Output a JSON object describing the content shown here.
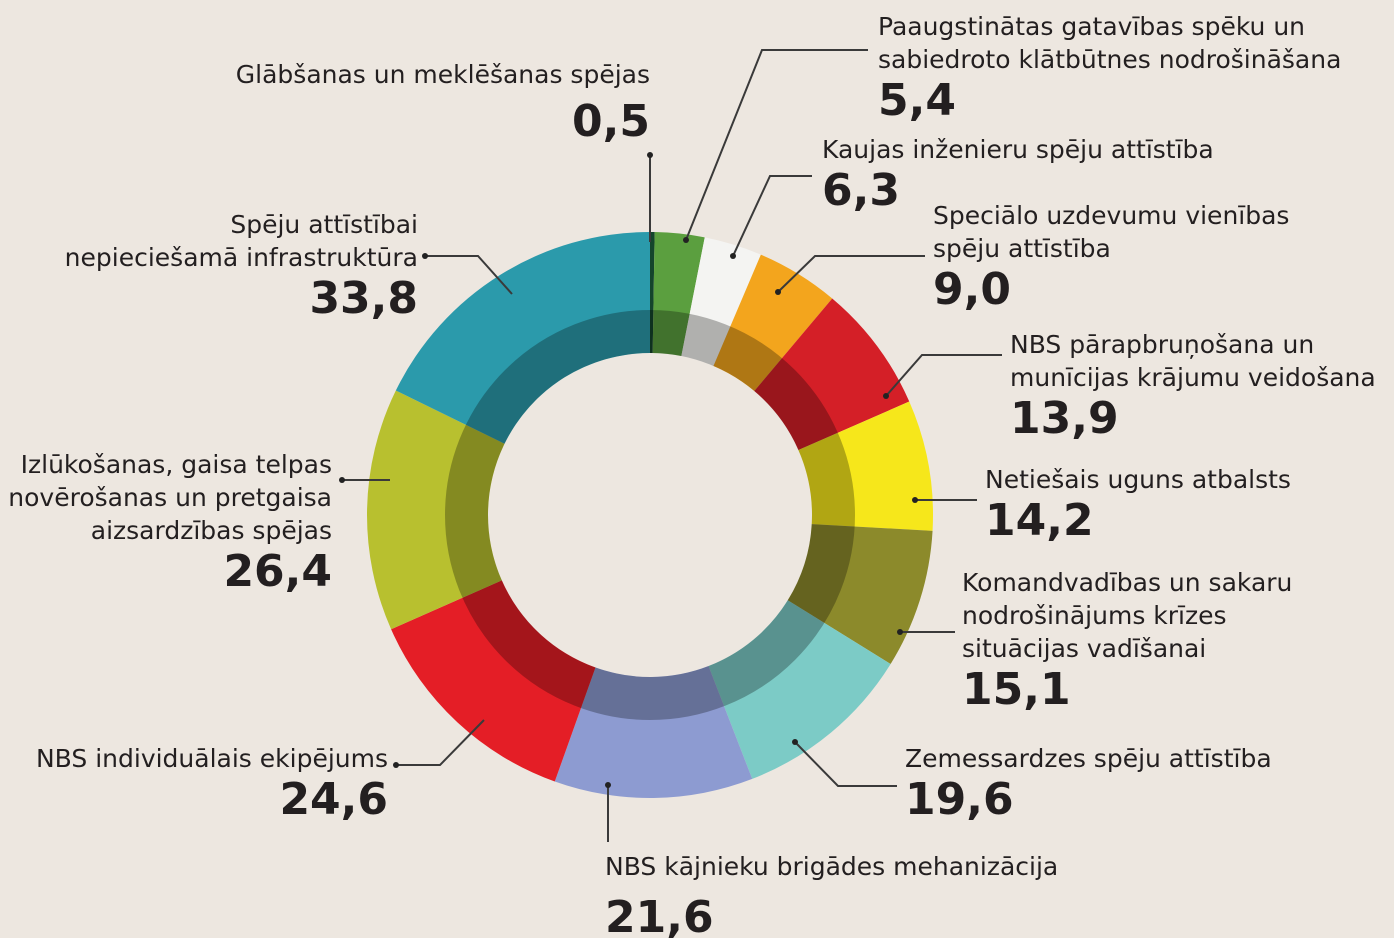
{
  "chart_data": {
    "type": "donut",
    "categories": [
      "Glābšanas un meklēšanas spējas",
      "Paaugstinātas gatavības spēku un\nsabiedroto klātbūtnes nodrošināšana",
      "Kaujas inženieru spēju attīstība",
      "Speciālo uzdevumu vienības\nspēju attīstība",
      "NBS pārapbruņošana un\nmunīcijas krājumu veidošana",
      "Netiešais uguns atbalsts",
      "Komandvadības un sakaru\nnodrošinājums krīzes\nsituācijas vadīšanai",
      "Zemessardzes spēju attīstība",
      "NBS kājnieku brigādes mehanizācija",
      "NBS individuālais ekipējums",
      "Izlūkošanas, gaisa telpas\nnovērošanas un pretgaisa\naizsardzības spējas",
      "Spēju attīstībai\nnepieciešamā infrastruktūra"
    ],
    "values": [
      0.5,
      5.4,
      6.3,
      9.0,
      13.9,
      14.2,
      15.1,
      19.6,
      21.6,
      24.6,
      26.4,
      33.8
    ],
    "value_labels": [
      "0,5",
      "5,4",
      "6,3",
      "9,0",
      "13,9",
      "14,2",
      "15,1",
      "19,6",
      "21,6",
      "24,6",
      "26,4",
      "33,8"
    ],
    "colors": [
      "#14452c",
      "#5b9f3f",
      "#f4f4f2",
      "#f3a51d",
      "#d41f27",
      "#f6e71b",
      "#8c8a2b",
      "#7ccbc6",
      "#8d9bd1",
      "#e41e26",
      "#b8c02f",
      "#2b9aab"
    ]
  }
}
